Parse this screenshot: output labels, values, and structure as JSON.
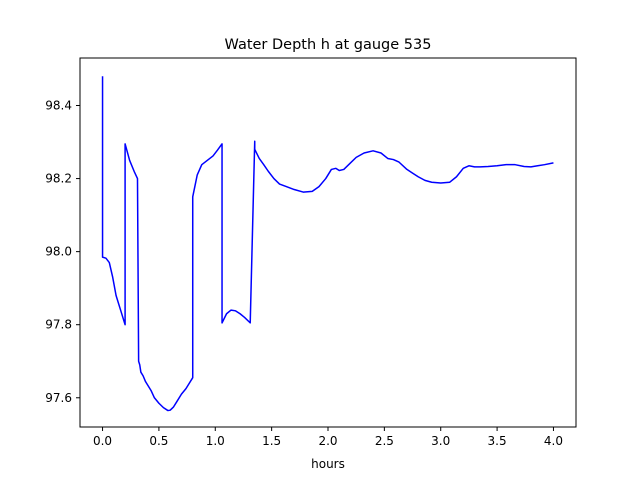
{
  "chart_data": {
    "type": "line",
    "title": "Water Depth h at gauge 535",
    "xlabel": "hours",
    "ylabel": "",
    "xlim": [
      -0.2,
      4.2
    ],
    "ylim": [
      97.52,
      98.53
    ],
    "xticks": [
      0.0,
      0.5,
      1.0,
      1.5,
      2.0,
      2.5,
      3.0,
      3.5,
      4.0
    ],
    "xtick_labels": [
      "0.0",
      "0.5",
      "1.0",
      "1.5",
      "2.0",
      "2.5",
      "3.0",
      "3.5",
      "4.0"
    ],
    "yticks": [
      97.6,
      97.8,
      98.0,
      98.2,
      98.4
    ],
    "ytick_labels": [
      "97.6",
      "97.8",
      "98.0",
      "98.2",
      "98.4"
    ],
    "grid": false,
    "legend": "none",
    "series": [
      {
        "color": "#0000ff",
        "x": [
          0.0,
          0.0,
          0.03,
          0.06,
          0.09,
          0.12,
          0.16,
          0.2,
          0.2,
          0.24,
          0.28,
          0.31,
          0.32,
          0.33,
          0.34,
          0.36,
          0.38,
          0.4,
          0.43,
          0.46,
          0.5,
          0.54,
          0.58,
          0.6,
          0.63,
          0.66,
          0.7,
          0.74,
          0.8,
          0.8,
          0.84,
          0.88,
          0.93,
          0.98,
          1.02,
          1.06,
          1.06,
          1.1,
          1.14,
          1.18,
          1.22,
          1.26,
          1.31,
          1.35,
          1.35,
          1.39,
          1.43,
          1.47,
          1.52,
          1.57,
          1.63,
          1.7,
          1.78,
          1.86,
          1.92,
          1.98,
          2.03,
          2.07,
          2.1,
          2.14,
          2.19,
          2.25,
          2.32,
          2.4,
          2.47,
          2.53,
          2.58,
          2.63,
          2.7,
          2.75,
          2.8,
          2.86,
          2.92,
          3.0,
          3.08,
          3.14,
          3.2,
          3.25,
          3.3,
          3.35,
          3.42,
          3.5,
          3.58,
          3.66,
          3.74,
          3.8,
          3.86,
          3.92,
          4.0
        ],
        "values": [
          98.48,
          97.985,
          97.982,
          97.97,
          97.93,
          97.88,
          97.84,
          97.8,
          98.295,
          98.25,
          98.22,
          98.2,
          97.7,
          97.69,
          97.67,
          97.66,
          97.645,
          97.635,
          97.62,
          97.6,
          97.585,
          97.573,
          97.565,
          97.566,
          97.575,
          97.59,
          97.61,
          97.625,
          97.655,
          98.15,
          98.21,
          98.238,
          98.25,
          98.262,
          98.278,
          98.295,
          97.805,
          97.83,
          97.84,
          97.838,
          97.83,
          97.82,
          97.805,
          98.302,
          98.28,
          98.255,
          98.238,
          98.22,
          98.2,
          98.185,
          98.178,
          98.17,
          98.163,
          98.165,
          98.178,
          98.2,
          98.225,
          98.228,
          98.222,
          98.225,
          98.24,
          98.258,
          98.27,
          98.276,
          98.27,
          98.255,
          98.252,
          98.245,
          98.225,
          98.215,
          98.205,
          98.195,
          98.19,
          98.188,
          98.19,
          98.205,
          98.228,
          98.235,
          98.232,
          98.232,
          98.233,
          98.235,
          98.238,
          98.238,
          98.233,
          98.232,
          98.235,
          98.238,
          98.243
        ]
      }
    ]
  }
}
